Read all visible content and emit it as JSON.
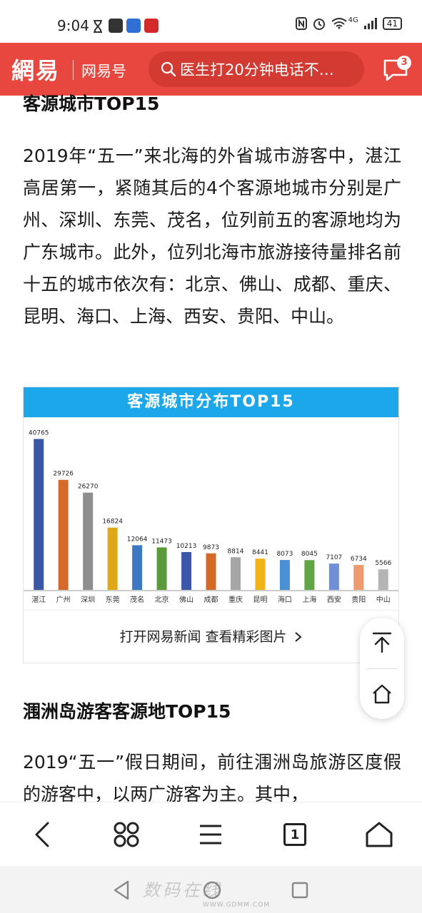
{
  "status_bar": {
    "time": "9:04",
    "network": "4G",
    "battery": "41"
  },
  "header": {
    "logo": "網易",
    "subtitle": "网易号",
    "search_text": "医生打20分钟电话不…",
    "message_badge": "3",
    "accent_color": "#e8473f"
  },
  "article": {
    "section1_title": "客源城市TOP15",
    "paragraph1": "2019年“五一”来北海的外省城市游客中，湛江高居第一，紧随其后的4个客源地城市分别是广州、深圳、东莞、茂名，位列前五的客源地均为广东城市。此外，位列北海市旅游接待量排名前十五的城市依次有：北京、佛山、成都、重庆、昆明、海口、上海、西安、贵阳、中山。",
    "section2_title": "涠洲岛游客客源地TOP15",
    "paragraph2": "2019“五一”假日期间，前往涠洲岛旅游区度假的游客中，以两广游客为主。其中，"
  },
  "chart_card": {
    "open_link": "打开网易新闻 查看精彩图片"
  },
  "chart_data": {
    "type": "bar",
    "title": "客源城市分布TOP15",
    "categories": [
      "湛江",
      "广州",
      "深圳",
      "东莞",
      "茂名",
      "北京",
      "佛山",
      "成都",
      "重庆",
      "昆明",
      "海口",
      "上海",
      "西安",
      "贵阳",
      "中山"
    ],
    "values": [
      40765,
      29726,
      26270,
      16824,
      12064,
      11473,
      10213,
      9873,
      8814,
      8441,
      8073,
      8045,
      7107,
      6734,
      5566
    ],
    "colors": [
      "#3a57a8",
      "#d4692a",
      "#8e8e8e",
      "#e0a817",
      "#3e78c4",
      "#5a9a3a",
      "#3a57a8",
      "#d4692a",
      "#a6a6a6",
      "#f0b419",
      "#4a90d4",
      "#62a544",
      "#6f8fd6",
      "#ee9a6e",
      "#b5b5b5"
    ],
    "ylim": [
      0,
      42000
    ],
    "show_data_labels": true,
    "grid": false,
    "legend": "none"
  },
  "icons": {
    "back": "chevron-left-icon",
    "apps": "apps-icon",
    "menu": "menu-icon",
    "tabs": "tabs-icon",
    "home": "home-icon",
    "tab_count": "1"
  },
  "watermark": {
    "text": "数码在线",
    "url": "WWW.GDMM.COM"
  }
}
